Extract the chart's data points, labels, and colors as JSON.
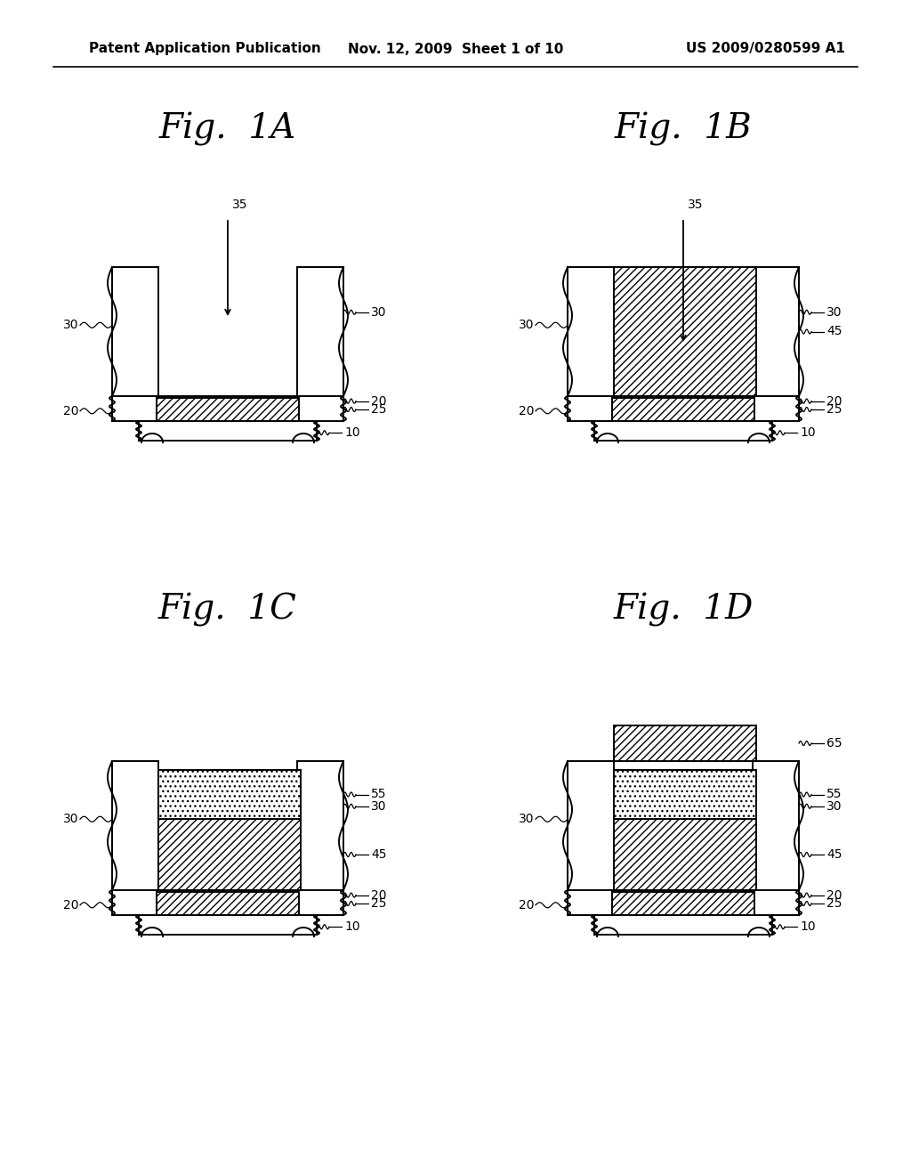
{
  "header_left": "Patent Application Publication",
  "header_mid": "Nov. 12, 2009  Sheet 1 of 10",
  "header_right": "US 2009/0280599 A1",
  "bg_color": "#ffffff",
  "lc": "#000000",
  "lw": 1.4
}
